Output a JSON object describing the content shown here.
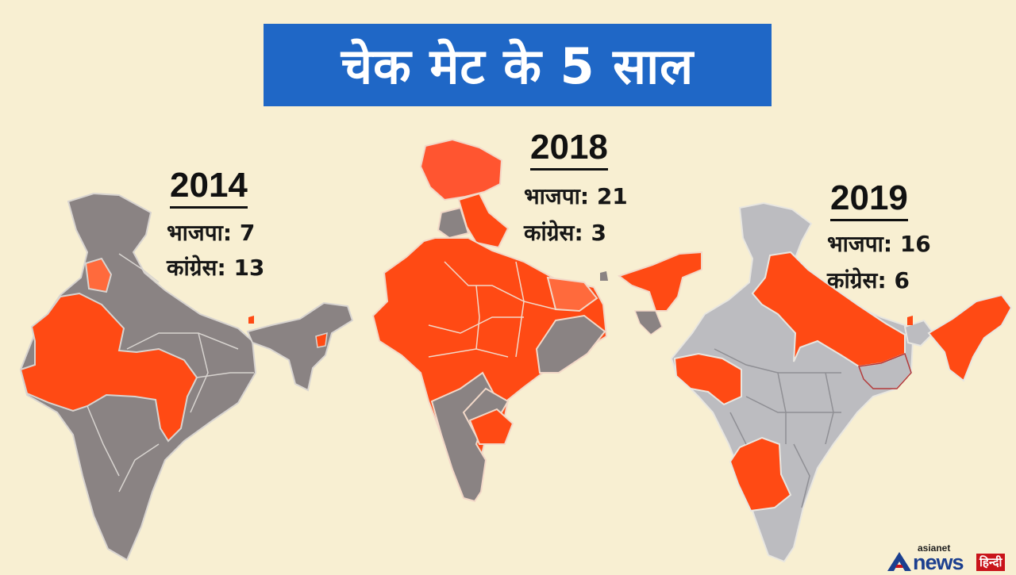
{
  "title": "चेक मेट के 5 साल",
  "panels": [
    {
      "year": "2014",
      "bjp_label": "भाजपा:",
      "bjp_count": "7",
      "congress_label": "कांग्रेस:",
      "congress_count": "13"
    },
    {
      "year": "2018",
      "bjp_label": "भाजपा:",
      "bjp_count": "21",
      "congress_label": "कांग्रेस:",
      "congress_count": "3"
    },
    {
      "year": "2019",
      "bjp_label": "भाजपा:",
      "bjp_count": "16",
      "congress_label": "कांग्रेस:",
      "congress_count": "6"
    }
  ],
  "colors": {
    "bjp_orange": "#ff4a14",
    "gray_2014": "#8a8383",
    "gray_2019": "#bcbcc0",
    "background": "#f8efd2",
    "banner": "#1f67c6"
  },
  "logo": {
    "top": "asianet",
    "main": "news",
    "badge": "हिन्दी"
  }
}
